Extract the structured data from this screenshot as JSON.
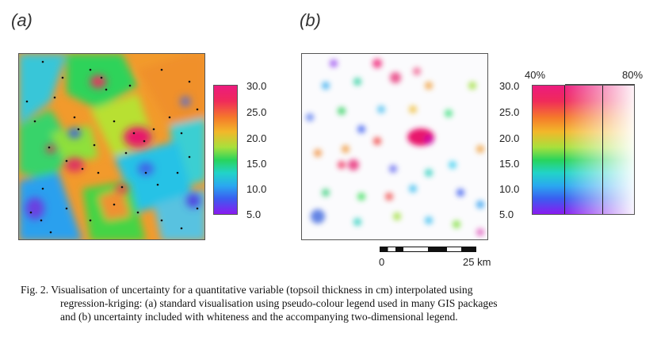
{
  "panels": {
    "a_label": "(a)",
    "b_label": "(b)"
  },
  "legend_a": {
    "ticks": [
      "30.0",
      "25.0",
      "20.0",
      "15.0",
      "10.0",
      "5.0"
    ]
  },
  "legend_b": {
    "ticks": [
      "30.0",
      "25.0",
      "20.0",
      "15.0",
      "10.0",
      "5.0"
    ],
    "pct_left": "40%",
    "pct_right": "80%"
  },
  "scalebar": {
    "start": "0",
    "end": "25 km"
  },
  "caption": {
    "line1": "Fig. 2. Visualisation of uncertainty for a quantitative variable (topsoil thickness in cm) interpolated using",
    "line2": "regression-kriging: (a) standard visualisation using pseudo-colour legend used in many GIS packages",
    "line3": "and (b) uncertainty included with whiteness and the accompanying two-dimensional legend."
  }
}
